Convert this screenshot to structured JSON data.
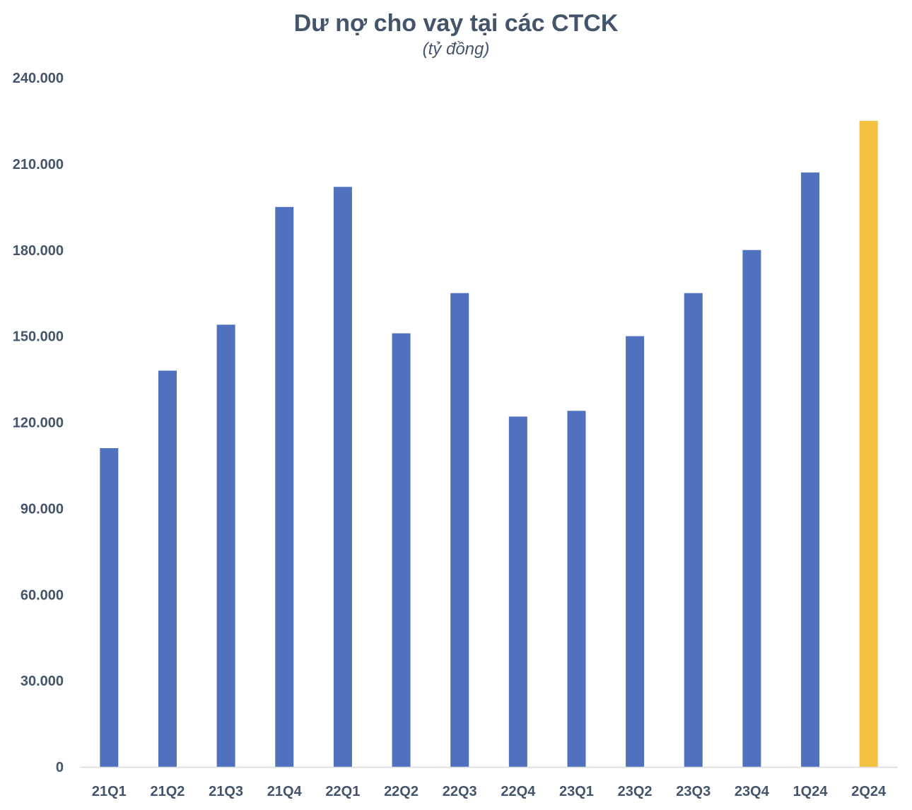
{
  "chart_data": {
    "type": "bar",
    "title": "Dư nợ cho vay tại các CTCK",
    "subtitle": "(tỷ đồng)",
    "categories": [
      "21Q1",
      "21Q2",
      "21Q3",
      "21Q4",
      "22Q1",
      "22Q2",
      "22Q3",
      "22Q4",
      "23Q1",
      "23Q2",
      "23Q3",
      "23Q4",
      "1Q24",
      "2Q24"
    ],
    "values": [
      111000,
      138000,
      154000,
      195000,
      202000,
      151000,
      165000,
      122000,
      124000,
      150000,
      165000,
      180000,
      207000,
      225000
    ],
    "ylim": [
      0,
      240000
    ],
    "yticks": [
      0,
      30000,
      60000,
      90000,
      120000,
      150000,
      180000,
      210000,
      240000
    ],
    "ytick_labels": [
      "0",
      "30.000",
      "60.000",
      "90.000",
      "120.000",
      "150.000",
      "180.000",
      "210.000",
      "240.000"
    ],
    "grid": false,
    "legend": "none",
    "bar_color": "#4f71be",
    "highlight_color": "#f4c243",
    "highlight_categories": [
      "2Q24"
    ],
    "axis_color": "#d9d9d9"
  }
}
